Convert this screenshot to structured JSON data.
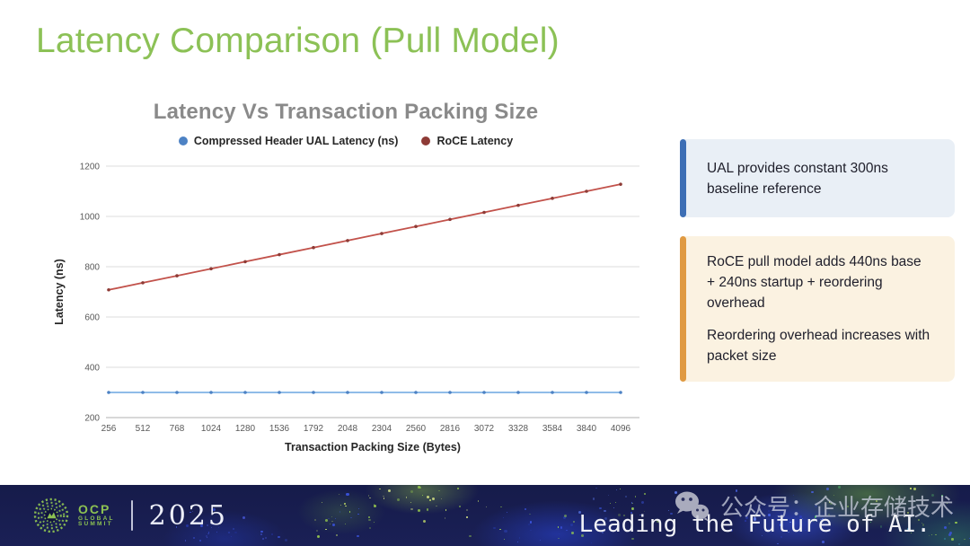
{
  "slide": {
    "title": "Latency Comparison (Pull Model)",
    "title_color": "#8CC156"
  },
  "chart_data": {
    "type": "line",
    "title": "Latency Vs Transaction Packing Size",
    "xlabel": "Transaction Packing Size (Bytes)",
    "ylabel": "Latency (ns)",
    "x": [
      256,
      512,
      768,
      1024,
      1280,
      1536,
      1792,
      2048,
      2304,
      2560,
      2816,
      3072,
      3328,
      3584,
      3840,
      4096
    ],
    "series": [
      {
        "name": "Compressed Header UAL Latency (ns)",
        "color": "#7FB2E5",
        "marker_color": "#4D82C4",
        "values": [
          300,
          300,
          300,
          300,
          300,
          300,
          300,
          300,
          300,
          300,
          300,
          300,
          300,
          300,
          300,
          300
        ]
      },
      {
        "name": "RoCE Latency",
        "color": "#C2524B",
        "marker_color": "#8E3B36",
        "values": [
          708,
          736,
          764,
          792,
          820,
          848,
          876,
          904,
          932,
          960,
          988,
          1016,
          1044,
          1072,
          1100,
          1128
        ]
      }
    ],
    "ylim": [
      200,
      1200
    ],
    "yticks": [
      200,
      400,
      600,
      800,
      1000,
      1200
    ],
    "grid": true,
    "legend_position": "top"
  },
  "callouts": [
    {
      "accent": "#3D6EB5",
      "bg": "#E9EFF6",
      "paragraphs": [
        "UAL provides constant 300ns baseline reference"
      ]
    },
    {
      "accent": "#E09A42",
      "bg": "#FBF2E1",
      "paragraphs": [
        "RoCE pull model adds 440ns base + 240ns startup + reordering overhead",
        "Reordering overhead increases with packet size"
      ]
    }
  ],
  "footer": {
    "logo": {
      "org": "OCP",
      "line1": "GLOBAL",
      "line2": "SUMMIT",
      "year": "2025",
      "accent": "#8CC152"
    },
    "tagline": "Leading the Future of AI.",
    "watermark": "公众号：企业存储技术"
  }
}
